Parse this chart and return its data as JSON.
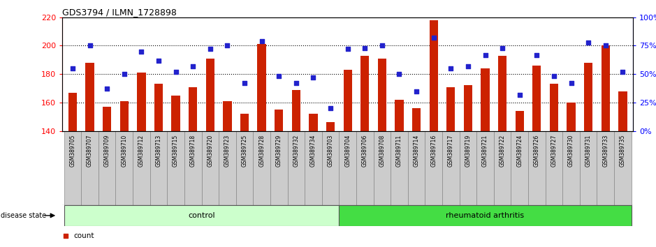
{
  "title": "GDS3794 / ILMN_1728898",
  "samples": [
    "GSM389705",
    "GSM389707",
    "GSM389709",
    "GSM389710",
    "GSM389712",
    "GSM389713",
    "GSM389715",
    "GSM389718",
    "GSM389720",
    "GSM389723",
    "GSM389725",
    "GSM389728",
    "GSM389729",
    "GSM389732",
    "GSM389734",
    "GSM389703",
    "GSM389704",
    "GSM389706",
    "GSM389708",
    "GSM389711",
    "GSM389714",
    "GSM389716",
    "GSM389717",
    "GSM389719",
    "GSM389721",
    "GSM389722",
    "GSM389724",
    "GSM389726",
    "GSM389727",
    "GSM389730",
    "GSM389731",
    "GSM389733",
    "GSM389735"
  ],
  "bar_values": [
    167,
    188,
    157,
    161,
    181,
    173,
    165,
    171,
    191,
    161,
    152,
    201,
    155,
    169,
    152,
    146,
    183,
    193,
    191,
    162,
    156,
    218,
    171,
    172,
    184,
    193,
    154,
    186,
    173,
    160,
    188,
    200,
    168
  ],
  "percentile_values": [
    55,
    75,
    37,
    50,
    70,
    62,
    52,
    57,
    72,
    75,
    42,
    79,
    48,
    42,
    47,
    20,
    72,
    73,
    75,
    50,
    35,
    82,
    55,
    57,
    67,
    73,
    32,
    67,
    48,
    42,
    78,
    75,
    52
  ],
  "control_count": 16,
  "rheumatoid_count": 17,
  "ylim_left": [
    140,
    220
  ],
  "yticks_left": [
    140,
    160,
    180,
    200,
    220
  ],
  "ylim_right": [
    0,
    100
  ],
  "yticks_right": [
    0,
    25,
    50,
    75,
    100
  ],
  "bar_color": "#cc2200",
  "dot_color": "#2222cc",
  "control_color": "#ccffcc",
  "ra_color": "#44dd44",
  "tick_area_color": "#cccccc"
}
